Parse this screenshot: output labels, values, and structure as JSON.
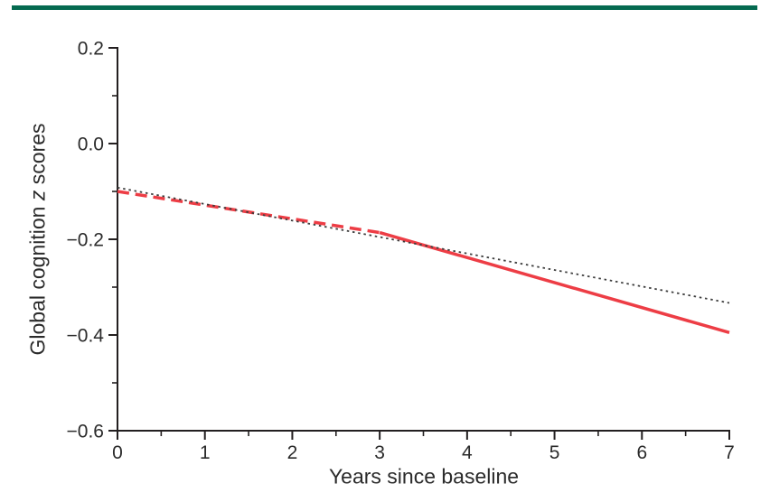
{
  "page": {
    "background": "#ffffff",
    "journal_rule_color": "#056a50"
  },
  "chart_data": {
    "type": "line",
    "title": "",
    "xlabel": "Years since baseline",
    "ylabel": "Global cognition z scores",
    "ylabel_parts": {
      "pre": "Global cognition ",
      "italic": "z",
      "post": " scores"
    },
    "xlim": [
      0,
      7
    ],
    "ylim": [
      -0.6,
      0.2
    ],
    "x_ticks": [
      0,
      1,
      2,
      3,
      4,
      5,
      6,
      7
    ],
    "x_tick_labels": [
      "0",
      "1",
      "2",
      "3",
      "4",
      "5",
      "6",
      "7"
    ],
    "x_minor_step": 0.5,
    "y_ticks": [
      0.2,
      0.0,
      -0.2,
      -0.4,
      -0.6
    ],
    "y_tick_labels": [
      "0.2",
      "0.0",
      "−0.2",
      "−0.4",
      "−0.6"
    ],
    "y_minor_step": 0.1,
    "grid": false,
    "legend_position": "none",
    "axis_color": "#231f20",
    "tick_label_color": "#2b2b2b",
    "series": [
      {
        "name": "cognition-trajectory-dashed-segment",
        "color": "#ed3d45",
        "style": "dashed",
        "width": 3.5,
        "x": [
          0,
          3
        ],
        "y": [
          -0.1,
          -0.186
        ]
      },
      {
        "name": "cognition-trajectory-solid-segment",
        "color": "#ed3d45",
        "style": "solid",
        "width": 3.5,
        "x": [
          3,
          7
        ],
        "y": [
          -0.186,
          -0.395
        ]
      },
      {
        "name": "expected-trajectory-dotted",
        "color": "#3d3d3d",
        "style": "dotted",
        "width": 1.8,
        "x": [
          0,
          7
        ],
        "y": [
          -0.092,
          -0.333
        ]
      }
    ]
  }
}
